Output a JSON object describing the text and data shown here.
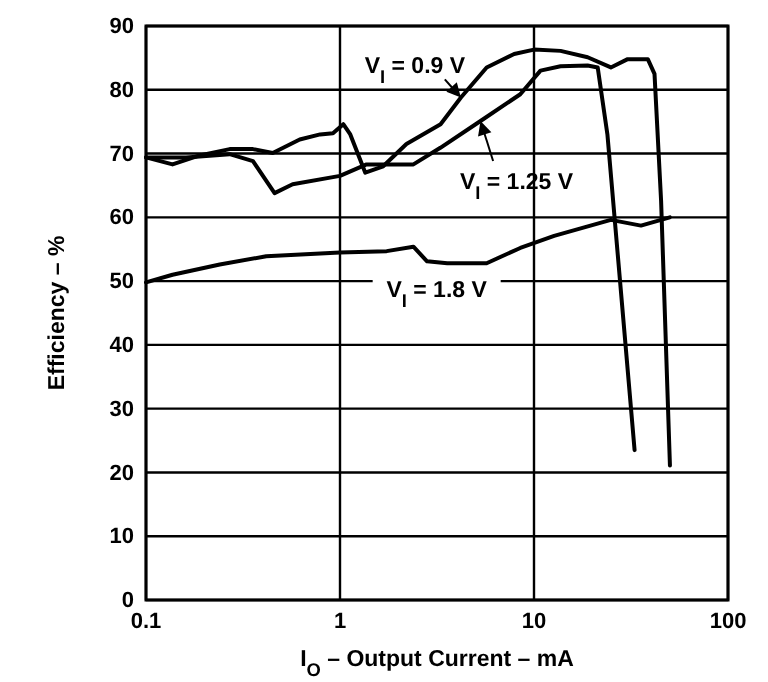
{
  "chart_data": {
    "type": "line",
    "xlabel": "I$_{O}$ – Output Current – mA",
    "ylabel": "Efficiency – %",
    "log": "x",
    "xlim": [
      0.1,
      100
    ],
    "xticks": [
      0.1,
      1,
      10,
      100
    ],
    "ylim": [
      0,
      90
    ],
    "yticks": [
      0,
      10,
      20,
      30,
      40,
      50,
      60,
      70,
      80,
      90
    ],
    "grid": true,
    "series": [
      {
        "name": "V$_{I}$ = 0.9 V",
        "color": "#000000",
        "x": [
          0.1,
          0.137,
          0.189,
          0.27,
          0.356,
          0.45,
          0.62,
          0.79,
          0.92,
          1.04,
          1.13,
          1.35,
          1.67,
          2.2,
          3.3,
          4.2,
          5.7,
          7.9,
          10,
          13.7,
          18.9,
          24.9,
          30.4,
          38.6,
          41.8,
          45.2,
          50.2
        ],
        "values": [
          69.4,
          68.3,
          69.7,
          70.7,
          70.7,
          70.1,
          72.2,
          73.0,
          73.2,
          74.6,
          73.0,
          67.0,
          68.0,
          71.5,
          74.6,
          78.8,
          83.5,
          85.6,
          86.3,
          86.1,
          85.1,
          83.5,
          84.8,
          84.8,
          82.5,
          62.6,
          21.1
        ]
      },
      {
        "name": "V$_{I}$ = 1.25 V",
        "color": "#000000",
        "x": [
          0.1,
          0.161,
          0.27,
          0.356,
          0.46,
          0.57,
          1.0,
          1.37,
          2.39,
          3.29,
          5.3,
          8.5,
          10.8,
          13.7,
          18.9,
          21.3,
          23.9,
          33.0
        ],
        "values": [
          69.4,
          69.4,
          69.9,
          68.8,
          63.8,
          65.2,
          66.5,
          68.3,
          68.3,
          70.9,
          75.1,
          79.3,
          83.0,
          83.7,
          83.8,
          83.5,
          73.0,
          23.5
        ]
      },
      {
        "name": "V$_{I}$ = 1.8 V",
        "color": "#000000",
        "x": [
          0.1,
          0.137,
          0.24,
          0.417,
          1.0,
          1.74,
          2.39,
          2.81,
          3.57,
          5.7,
          8.5,
          12.7,
          24.9,
          35.6,
          50.1
        ],
        "values": [
          49.8,
          51.0,
          52.6,
          53.9,
          54.5,
          54.7,
          55.4,
          53.1,
          52.8,
          52.8,
          55.2,
          57.1,
          59.6,
          58.7,
          60.0
        ]
      }
    ]
  }
}
